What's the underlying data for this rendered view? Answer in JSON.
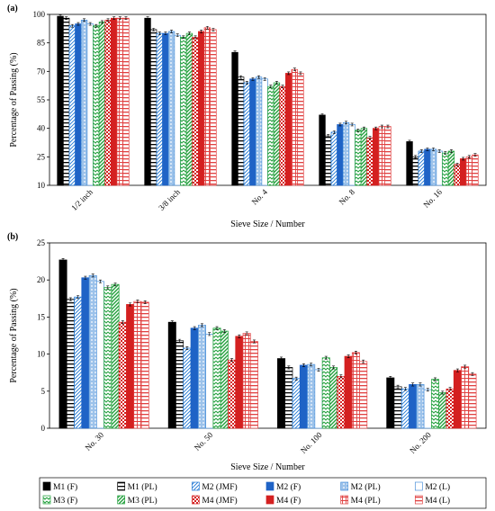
{
  "legend": [
    {
      "label": "M1 (F)",
      "color": "#000000",
      "pattern": "solid"
    },
    {
      "label": "M1 (PL)",
      "color": "#000000",
      "pattern": "hlines"
    },
    {
      "label": "M2 (JMF)",
      "color": "#1f77d4",
      "pattern": "diag"
    },
    {
      "label": "M2 (F)",
      "color": "#1f63c6",
      "pattern": "solid"
    },
    {
      "label": "M2 (PL)",
      "color": "#4a90d9",
      "pattern": "dots"
    },
    {
      "label": "M2 (L)",
      "color": "#4a90d9",
      "pattern": "empty"
    },
    {
      "label": "M3 (F)",
      "color": "#22a03c",
      "pattern": "zigzag"
    },
    {
      "label": "M3 (PL)",
      "color": "#22a03c",
      "pattern": "diagdense"
    },
    {
      "label": "M4 (JMF)",
      "color": "#d42020",
      "pattern": "checker"
    },
    {
      "label": "M4 (F)",
      "color": "#d42020",
      "pattern": "solid"
    },
    {
      "label": "M4 (PL)",
      "color": "#e04040",
      "pattern": "grid"
    },
    {
      "label": "M4 (L)",
      "color": "#e04040",
      "pattern": "hlines"
    }
  ],
  "chart_data": [
    {
      "type": "bar",
      "panel": "(a)",
      "xlabel": "Sieve Size / Number",
      "ylabel": "Percentage of Passing (%)",
      "ylim": [
        10,
        100
      ],
      "yticks": [
        10,
        25,
        40,
        55,
        70,
        85,
        100
      ],
      "categories": [
        "1/2 inch",
        "3/8 inch",
        "No. 4",
        "No. 8",
        "No. 16"
      ],
      "series": [
        {
          "name": "M1 (F)",
          "values": [
            99,
            98,
            80,
            47,
            33
          ]
        },
        {
          "name": "M1 (PL)",
          "values": [
            98,
            92,
            67,
            36,
            25
          ]
        },
        {
          "name": "M2 (JMF)",
          "values": [
            94,
            90,
            64,
            38,
            28
          ]
        },
        {
          "name": "M2 (F)",
          "values": [
            95,
            90,
            66,
            42,
            29
          ]
        },
        {
          "name": "M2 (PL)",
          "values": [
            97,
            91,
            67,
            43,
            29
          ]
        },
        {
          "name": "M2 (L)",
          "values": [
            95,
            89,
            66,
            42,
            28
          ]
        },
        {
          "name": "M3 (F)",
          "values": [
            94,
            88,
            62,
            39,
            27
          ]
        },
        {
          "name": "M3 (PL)",
          "values": [
            96,
            90,
            64,
            40,
            28
          ]
        },
        {
          "name": "M4 (JMF)",
          "values": [
            97,
            88,
            62,
            35,
            21
          ]
        },
        {
          "name": "M4 (F)",
          "values": [
            98,
            91,
            69,
            40,
            24
          ]
        },
        {
          "name": "M4 (PL)",
          "values": [
            98,
            93,
            71,
            41,
            25
          ]
        },
        {
          "name": "M4 (L)",
          "values": [
            98,
            92,
            69,
            41,
            26
          ]
        }
      ]
    },
    {
      "type": "bar",
      "panel": "(b)",
      "xlabel": "Sieve Size / Number",
      "ylabel": "Percentage of Passing (%)",
      "ylim": [
        0,
        25
      ],
      "yticks": [
        0,
        5,
        10,
        15,
        20,
        25
      ],
      "categories": [
        "No. 30",
        "No. 50",
        "No. 100",
        "No. 200"
      ],
      "series": [
        {
          "name": "M1 (F)",
          "values": [
            22.7,
            14.3,
            9.4,
            6.8
          ]
        },
        {
          "name": "M1 (PL)",
          "values": [
            17.4,
            11.8,
            8.2,
            5.6
          ]
        },
        {
          "name": "M2 (JMF)",
          "values": [
            17.7,
            10.8,
            6.7,
            5.3
          ]
        },
        {
          "name": "M2 (F)",
          "values": [
            20.3,
            13.5,
            8.5,
            5.9
          ]
        },
        {
          "name": "M2 (PL)",
          "values": [
            20.6,
            13.9,
            8.6,
            5.9
          ]
        },
        {
          "name": "M2 (L)",
          "values": [
            19.8,
            12.7,
            7.9,
            5.2
          ]
        },
        {
          "name": "M3 (F)",
          "values": [
            19.0,
            13.5,
            9.5,
            6.6
          ]
        },
        {
          "name": "M3 (PL)",
          "values": [
            19.4,
            13.1,
            8.2,
            4.8
          ]
        },
        {
          "name": "M4 (JMF)",
          "values": [
            14.3,
            9.2,
            7.0,
            5.3
          ]
        },
        {
          "name": "M4 (F)",
          "values": [
            16.7,
            12.4,
            9.7,
            7.8
          ]
        },
        {
          "name": "M4 (PL)",
          "values": [
            17.1,
            12.8,
            10.2,
            8.3
          ]
        },
        {
          "name": "M4 (L)",
          "values": [
            17.0,
            11.7,
            9.0,
            7.3
          ]
        }
      ]
    }
  ]
}
